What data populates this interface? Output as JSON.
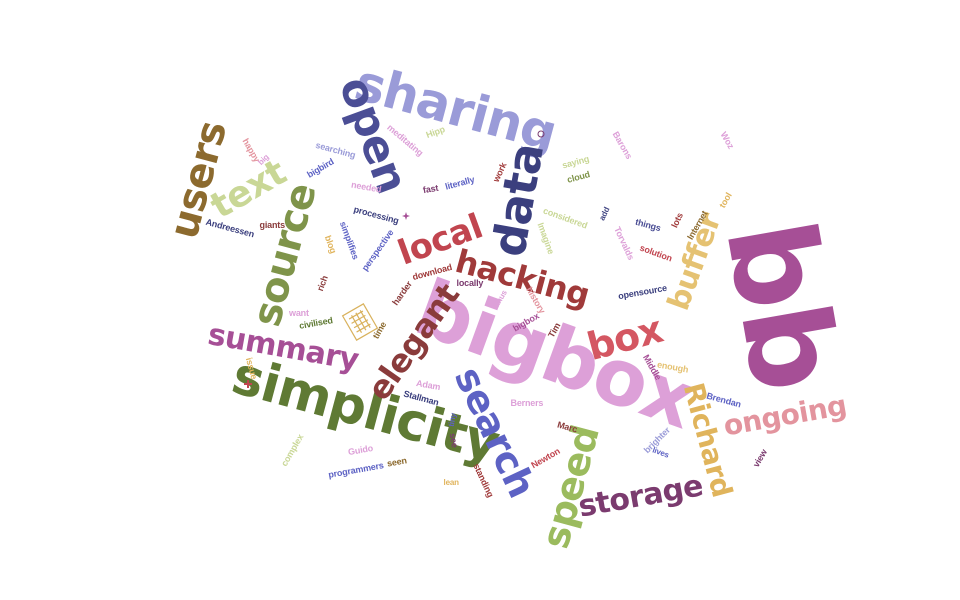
{
  "palette": {
    "purple": "#a64f96",
    "pink": "#dda0d8",
    "olive": "#5f7a34",
    "lightolive": "#c9d796",
    "navy": "#3b3f7e",
    "periwinkle": "#9a9bd8",
    "red": "#c1454f",
    "brown": "#8c6a2e",
    "gold": "#e0b45c",
    "rose": "#e3949e",
    "plum": "#7b3b6f",
    "blue": "#5d62c4",
    "green": "#9bbb5e",
    "maroon": "#8a3b3b"
  },
  "icons": [
    "grid-document-icon",
    "plus-icon",
    "small-star-icon"
  ],
  "words": [
    {
      "text": "bb",
      "color": "#a64f96"
    },
    {
      "text": "bigbox",
      "color": "#dda0d8"
    },
    {
      "text": "simplicity",
      "color": "#5f7a34"
    },
    {
      "text": "sharing",
      "color": "#9a9bd8"
    },
    {
      "text": "data",
      "color": "#3b3f7e"
    },
    {
      "text": "open",
      "color": "#4b4e95"
    },
    {
      "text": "users",
      "color": "#8c6a2e"
    },
    {
      "text": "text",
      "color": "#c9d796"
    },
    {
      "text": "source",
      "color": "#7f944a"
    },
    {
      "text": "local",
      "color": "#c1454f"
    },
    {
      "text": "hacking",
      "color": "#a03a3a"
    },
    {
      "text": "box",
      "color": "#d45762"
    },
    {
      "text": "buffer",
      "color": "#e5c272"
    },
    {
      "text": "summary",
      "color": "#a64f96"
    },
    {
      "text": "elegant",
      "color": "#8a3b3b"
    },
    {
      "text": "search",
      "color": "#5d62c4"
    },
    {
      "text": "speed",
      "color": "#9bbb5e"
    },
    {
      "text": "storage",
      "color": "#7b3b6f"
    },
    {
      "text": "Richard",
      "color": "#e0b45c"
    },
    {
      "text": "ongoing",
      "color": "#e3949e"
    },
    {
      "text": "happy",
      "color": "#e3949e"
    },
    {
      "text": "big",
      "color": "#dda0d8"
    },
    {
      "text": "bigbird",
      "color": "#5d62c4"
    },
    {
      "text": "searching",
      "color": "#9a9bd8"
    },
    {
      "text": "meditating",
      "color": "#dda0d8"
    },
    {
      "text": "Hipp",
      "color": "#c9d796"
    },
    {
      "text": "needed",
      "color": "#dda0d8"
    },
    {
      "text": "fast",
      "color": "#7b3b6f"
    },
    {
      "text": "literally",
      "color": "#5d62c4"
    },
    {
      "text": "work",
      "color": "#a03a3a"
    },
    {
      "text": "saying",
      "color": "#c9d796"
    },
    {
      "text": "cloud",
      "color": "#7f944a"
    },
    {
      "text": "Barons",
      "color": "#dda0d8"
    },
    {
      "text": "Woz",
      "color": "#dda0d8"
    },
    {
      "text": "tool",
      "color": "#e0b45c"
    },
    {
      "text": "Internet",
      "color": "#8c6a2e"
    },
    {
      "text": "lots",
      "color": "#a03a3a"
    },
    {
      "text": "things",
      "color": "#4b4e95"
    },
    {
      "text": "add",
      "color": "#3b3f7e"
    },
    {
      "text": "considered",
      "color": "#c9d796"
    },
    {
      "text": "processing",
      "color": "#3b3f7e"
    },
    {
      "text": "Andreessen",
      "color": "#3b3f7e"
    },
    {
      "text": "giants",
      "color": "#8a3b3b"
    },
    {
      "text": "blog",
      "color": "#e0b45c"
    },
    {
      "text": "simplifies",
      "color": "#5d62c4"
    },
    {
      "text": "perspective",
      "color": "#5d62c4"
    },
    {
      "text": "Torvalds",
      "color": "#dda0d8"
    },
    {
      "text": "solution",
      "color": "#c1454f"
    },
    {
      "text": "Imagine",
      "color": "#c9d796"
    },
    {
      "text": "download",
      "color": "#a03a3a"
    },
    {
      "text": "locally",
      "color": "#7b3b6f"
    },
    {
      "text": "Linus",
      "color": "#dda0d8"
    },
    {
      "text": "rich",
      "color": "#8a3b3b"
    },
    {
      "text": "opensource",
      "color": "#3b3f7e"
    },
    {
      "text": "history",
      "color": "#e3949e"
    },
    {
      "text": "Tim",
      "color": "#8a3b3b"
    },
    {
      "text": "want",
      "color": "#dda0d8"
    },
    {
      "text": "civilised",
      "color": "#5f7a34"
    },
    {
      "text": "harder",
      "color": "#8a3b3b"
    },
    {
      "text": "time",
      "color": "#8c6a2e"
    },
    {
      "text": "Adam",
      "color": "#dda0d8"
    },
    {
      "text": "Stallman",
      "color": "#3b3f7e"
    },
    {
      "text": "issue",
      "color": "#e0b45c"
    },
    {
      "text": "tiny",
      "color": "#5d62c4"
    },
    {
      "text": "Berners",
      "color": "#dda0d8"
    },
    {
      "text": "enough",
      "color": "#e5c272"
    },
    {
      "text": "Middle",
      "color": "#a64f96"
    },
    {
      "text": "Brendan",
      "color": "#5d62c4"
    },
    {
      "text": "Marc",
      "color": "#8a3b3b"
    },
    {
      "text": "brighter",
      "color": "#9a9bd8"
    },
    {
      "text": "Newton",
      "color": "#c1454f"
    },
    {
      "text": "view",
      "color": "#7b3b6f"
    },
    {
      "text": "lives",
      "color": "#5d62c4"
    },
    {
      "text": "Guido",
      "color": "#dda0d8"
    },
    {
      "text": "programmers",
      "color": "#5d62c4"
    },
    {
      "text": "seen",
      "color": "#8c6a2e"
    },
    {
      "text": "complex",
      "color": "#c9d796"
    },
    {
      "text": "standing",
      "color": "#a03a3a"
    },
    {
      "text": "see",
      "color": "#7b3b6f"
    },
    {
      "text": "bigbox",
      "color": "#a64f96"
    },
    {
      "text": "lean",
      "color": "#e0b45c"
    }
  ]
}
